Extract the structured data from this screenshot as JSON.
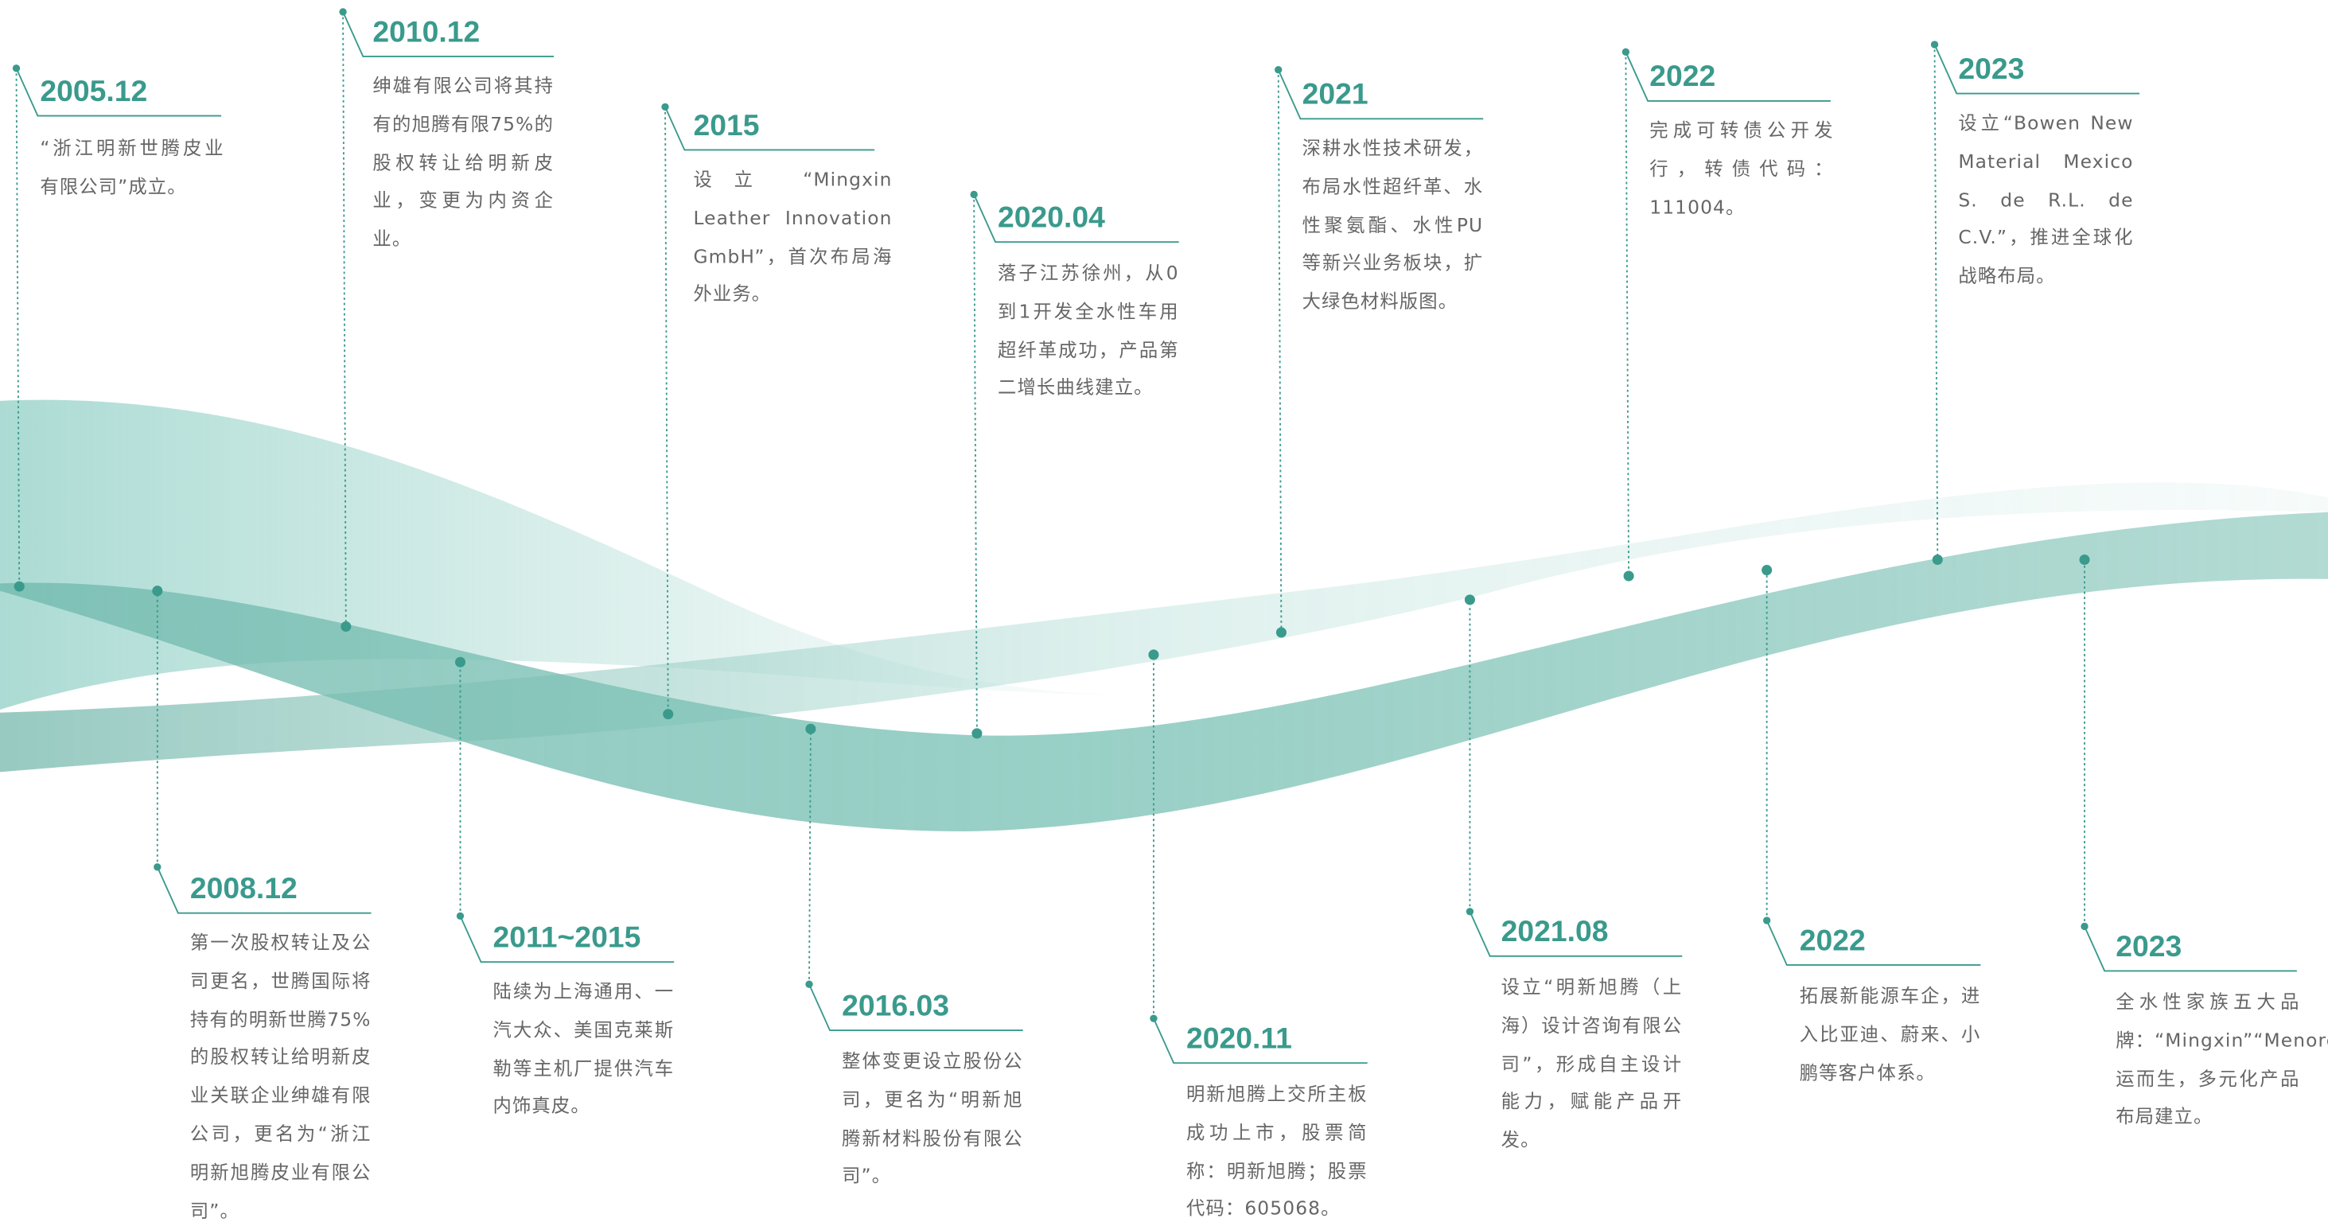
{
  "events_top": [
    {
      "title": "2005.12",
      "text": "“浙江明新世腾皮业有限公司”成立。"
    },
    {
      "title": "2010.12",
      "text": "绅雄有限公司将其持有的旭腾有限75%的股权转让给明新皮业，变更为内资企业。"
    },
    {
      "title": "2015",
      "text": "设立 “Mingxin Leather Innovation GmbH”，首次布局海外业务。"
    },
    {
      "title": "2020.04",
      "text": "落子江苏徐州，从0到1开发全水性车用超纤革成功，产品第二增长曲线建立。"
    },
    {
      "title": "2021",
      "text": "深耕水性技术研发，布局水性超纤革、水性聚氨酯、水性PU等新兴业务板块，扩大绿色材料版图。"
    },
    {
      "title": "2022",
      "text": "完成可转债公开发行，转债代码：111004。"
    },
    {
      "title": "2023",
      "text": "设立“Bowen New Material Mexico S. de R.L. de C.V.”，推进全球化战略布局。"
    }
  ],
  "events_bottom": [
    {
      "title": "2008.12",
      "text": "第一次股权转让及公司更名，世腾国际将持有的明新世腾75%的股权转让给明新皮业关联企业绅雄有限公司，更名为“浙江明新旭腾皮业有限公司”。"
    },
    {
      "title": "2011~2015",
      "text": "陆续为上海通用、一汽大众、美国克莱斯勒等主机厂提供汽车内饰真皮。"
    },
    {
      "title": "2016.03",
      "text": "整体变更设立股份公司，更名为“明新旭腾新材料股份有限公司”。"
    },
    {
      "title": "2020.11",
      "text": "明新旭腾上交所主板成功上市，股票简称：明新旭腾；股票代码：605068。"
    },
    {
      "title": "2021.08",
      "text": "设立“明新旭腾（上海）设计咨询有限公司”，形成自主设计能力，赋能产品开发。"
    },
    {
      "title": "2022",
      "text": "拓展新能源车企，进入比亚迪、蔚来、小鹏等客户体系。"
    },
    {
      "title": "2023",
      "text": "全水性家族五大品牌：“Mingxin”“Menorca”“Verstar”“Hurongo”“Eivisa”应运而生，多元化产品布局建立。"
    }
  ]
}
